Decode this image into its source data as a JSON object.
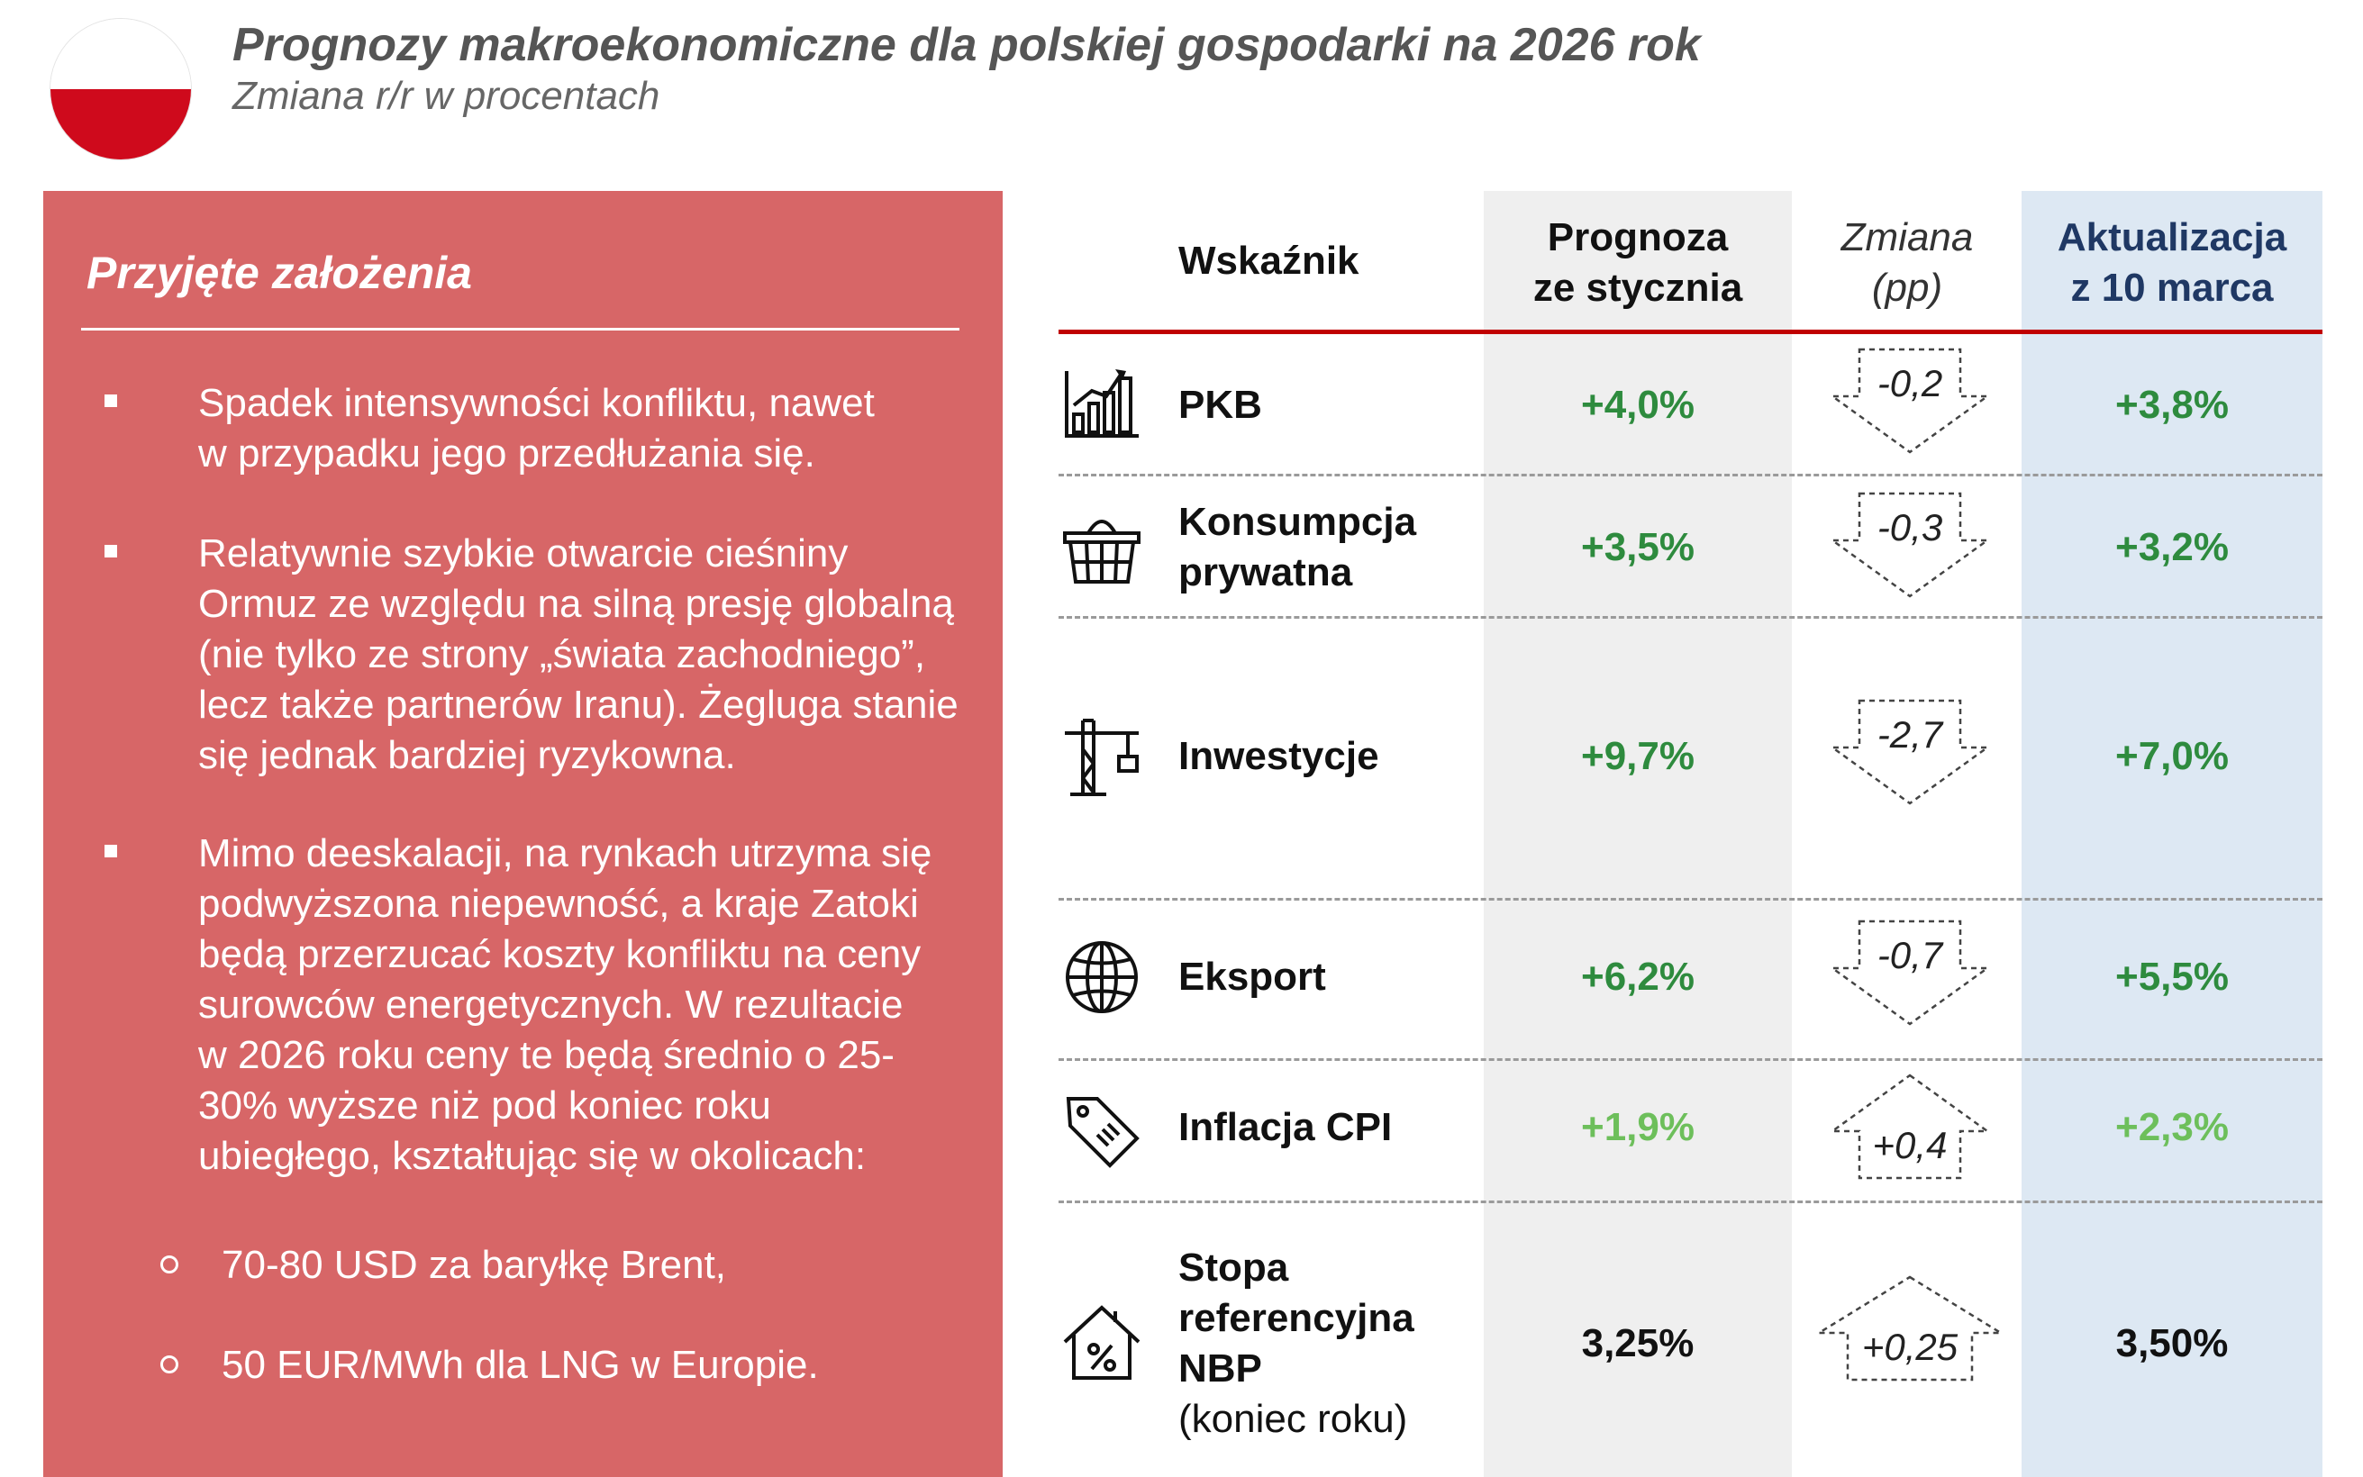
{
  "header": {
    "title": "Prognozy makroekonomiczne dla polskiej gospodarki na 2026 rok",
    "subtitle": "Zmiana r/r w procentach",
    "flag_colors": [
      "#ffffff",
      "#cf0a1c"
    ]
  },
  "assumptions": {
    "title": "Przyjęte założenia",
    "bullets": [
      {
        "lines": [
          "Spadek intensywności konfliktu, nawet",
          "w przypadku jego przedłużania się."
        ]
      },
      {
        "lines": [
          "Relatywnie szybkie otwarcie cieśniny",
          "Ormuz ze względu na silną presję globalną",
          "(nie tylko ze strony „świata zachodniego”,",
          "lecz także partnerów Iranu). Żegluga stanie",
          "się jednak bardziej ryzykowna."
        ]
      },
      {
        "lines": [
          "Mimo deeskalacji, na rynkach utrzyma się",
          "podwyższona niepewność, a kraje Zatoki",
          "będą przerzucać koszty konfliktu na ceny",
          "surowców energetycznych. W rezultacie",
          "w 2026 roku ceny te będą średnio o 25-",
          "30% wyższe niż pod koniec roku",
          "ubiegłego, kształtując się w okolicach:"
        ]
      }
    ],
    "sub_bullets": [
      "70-80 USD za baryłkę Brent,",
      "50 EUR/MWh dla LNG w Europie."
    ]
  },
  "table": {
    "headers": {
      "indicator": "Wskaźnik",
      "prognoza": [
        "Prognoza",
        "ze stycznia"
      ],
      "zmiana": [
        "Zmiana",
        "(pp)"
      ],
      "aktualizacja": [
        "Aktualizacja",
        "z 10 marca"
      ]
    },
    "rows": [
      {
        "icon": "bar-chart-icon",
        "label": [
          "PKB"
        ],
        "note": "",
        "prognoza": "+4,0%",
        "zmiana": "-0,2",
        "direction": "down",
        "aktualizacja": "+3,8%",
        "color": "#2e8b3e"
      },
      {
        "icon": "basket-icon",
        "label": [
          "Konsumpcja",
          "prywatna"
        ],
        "note": "",
        "prognoza": "+3,5%",
        "zmiana": "-0,3",
        "direction": "down",
        "aktualizacja": "+3,2%",
        "color": "#2e8b3e"
      },
      {
        "icon": "crane-icon",
        "label": [
          "Inwestycje"
        ],
        "note": "",
        "prognoza": "+9,7%",
        "zmiana": "-2,7",
        "direction": "down",
        "aktualizacja": "+7,0%",
        "color": "#2e8b3e"
      },
      {
        "icon": "globe-icon",
        "label": [
          "Eksport"
        ],
        "note": "",
        "prognoza": "+6,2%",
        "zmiana": "-0,7",
        "direction": "down",
        "aktualizacja": "+5,5%",
        "color": "#2e8b3e"
      },
      {
        "icon": "price-tag-icon",
        "label": [
          "Inflacja CPI"
        ],
        "note": "",
        "prognoza": "+1,9%",
        "zmiana": "+0,4",
        "direction": "up",
        "aktualizacja": "+2,3%",
        "color": "#6dbf5b"
      },
      {
        "icon": "house-percent-icon",
        "label": [
          "Stopa",
          "referencyjna",
          "NBP"
        ],
        "note": "(koniec roku)",
        "prognoza": "3,25%",
        "zmiana": "+0,25",
        "direction": "up",
        "aktualizacja": "3,50%",
        "color": "#111111"
      }
    ]
  }
}
